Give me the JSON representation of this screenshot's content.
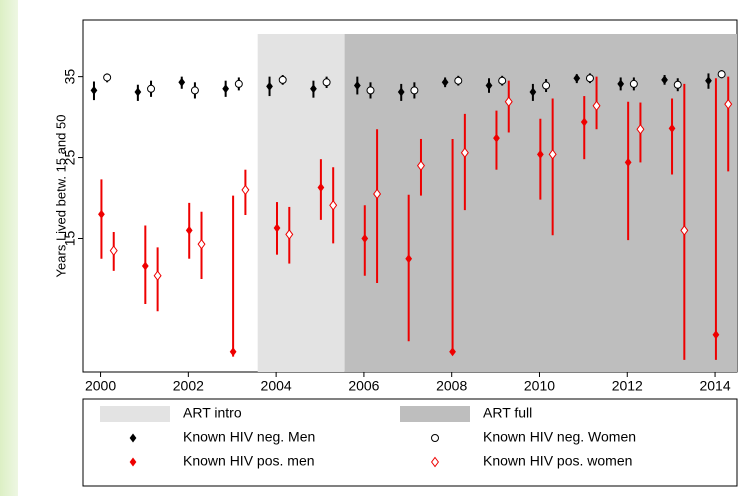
{
  "chart_data": {
    "type": "errorbar",
    "y_label": "Years Lived betw. 15 and 50",
    "xlim": [
      1999.6,
      2014.5
    ],
    "xticks": [
      2000,
      2002,
      2004,
      2006,
      2008,
      2010,
      2012,
      2014
    ],
    "ylim": [
      -1.5,
      42
    ],
    "yticks": [
      15,
      25,
      35
    ],
    "bands": [
      {
        "name": "ART intro",
        "color": "#e3e3e3",
        "xlim": [
          2003.58,
          2005.56
        ]
      },
      {
        "name": "ART full",
        "color": "#bebebe",
        "xlim": [
          2005.56,
          2014.5
        ]
      }
    ],
    "series": [
      {
        "name": "Known HIV neg. Men",
        "color": "#000000",
        "hollow": false,
        "x": [
          1999.85,
          2000.85,
          2001.85,
          2002.85,
          2003.85,
          2004.85,
          2005.85,
          2006.85,
          2007.85,
          2008.85,
          2009.85,
          2010.85,
          2011.85,
          2012.85,
          2013.85
        ],
        "values": [
          33.3,
          33.1,
          34.3,
          33.5,
          33.8,
          33.5,
          33.9,
          33.1,
          34.3,
          33.9,
          33.1,
          34.8,
          34.1,
          34.6,
          34.5
        ],
        "lower": [
          32.1,
          32.0,
          33.5,
          32.5,
          32.6,
          32.4,
          32.8,
          32.0,
          33.7,
          33.0,
          32.0,
          34.2,
          33.3,
          34.0,
          33.5
        ],
        "upper": [
          34.4,
          34.0,
          35.0,
          34.5,
          35.0,
          34.5,
          35.0,
          34.1,
          34.9,
          34.8,
          34.1,
          35.3,
          34.9,
          35.2,
          35.4
        ]
      },
      {
        "name": "Known HIV neg. Women",
        "color": "#000000",
        "hollow": true,
        "x": [
          2000.15,
          2001.15,
          2002.15,
          2003.15,
          2004.15,
          2005.15,
          2006.15,
          2007.15,
          2008.15,
          2009.15,
          2010.15,
          2011.15,
          2012.15,
          2013.15,
          2014.15
        ],
        "values": [
          34.9,
          33.5,
          33.3,
          34.1,
          34.6,
          34.3,
          33.3,
          33.3,
          34.5,
          34.5,
          33.9,
          34.8,
          34.1,
          34.0,
          35.3
        ],
        "lower": [
          34.3,
          32.5,
          32.3,
          33.3,
          34.0,
          33.6,
          32.3,
          32.3,
          33.9,
          33.9,
          33.1,
          34.2,
          33.3,
          33.2,
          34.8
        ],
        "upper": [
          35.4,
          34.5,
          34.3,
          34.9,
          35.2,
          35.0,
          34.3,
          34.3,
          35.1,
          35.1,
          34.7,
          35.4,
          34.9,
          34.8,
          35.8
        ]
      },
      {
        "name": "Known HIV pos. men",
        "color": "#ee0000",
        "hollow": false,
        "x": [
          2000.02,
          2001.02,
          2002.02,
          2003.02,
          2004.02,
          2005.02,
          2006.02,
          2007.02,
          2008.02,
          2009.02,
          2010.02,
          2011.02,
          2012.02,
          2013.02,
          2014.02
        ],
        "values": [
          18.0,
          11.6,
          16.0,
          1.0,
          16.3,
          21.3,
          15.0,
          12.5,
          1.0,
          27.4,
          25.4,
          29.4,
          24.4,
          28.6,
          3.1
        ],
        "lower": [
          12.5,
          6.9,
          12.5,
          0.4,
          13.0,
          17.3,
          10.4,
          2.3,
          0.8,
          23.5,
          19.8,
          24.8,
          14.8,
          22.9,
          0.0
        ],
        "upper": [
          22.3,
          16.6,
          19.4,
          20.3,
          19.5,
          24.8,
          19.1,
          20.4,
          27.3,
          30.8,
          29.8,
          32.6,
          31.9,
          32.3,
          34.8
        ]
      },
      {
        "name": "Known HIV pos. women",
        "color": "#ee0000",
        "hollow": true,
        "x": [
          2000.3,
          2001.3,
          2002.3,
          2003.3,
          2004.3,
          2005.3,
          2006.3,
          2007.3,
          2008.3,
          2009.3,
          2010.3,
          2011.3,
          2012.3,
          2013.3,
          2014.3
        ],
        "values": [
          13.5,
          10.4,
          14.3,
          21.0,
          15.5,
          19.1,
          20.5,
          24.0,
          25.6,
          31.9,
          25.4,
          31.4,
          28.5,
          16.0,
          31.6
        ],
        "lower": [
          11.0,
          6.0,
          10.0,
          17.9,
          11.9,
          14.4,
          9.5,
          20.3,
          18.5,
          28.1,
          15.4,
          28.5,
          24.4,
          0.0,
          23.3
        ],
        "upper": [
          15.8,
          13.9,
          18.3,
          23.5,
          18.9,
          23.8,
          28.5,
          27.3,
          30.4,
          34.5,
          32.3,
          35.0,
          31.8,
          34.1,
          35.0
        ]
      }
    ]
  }
}
